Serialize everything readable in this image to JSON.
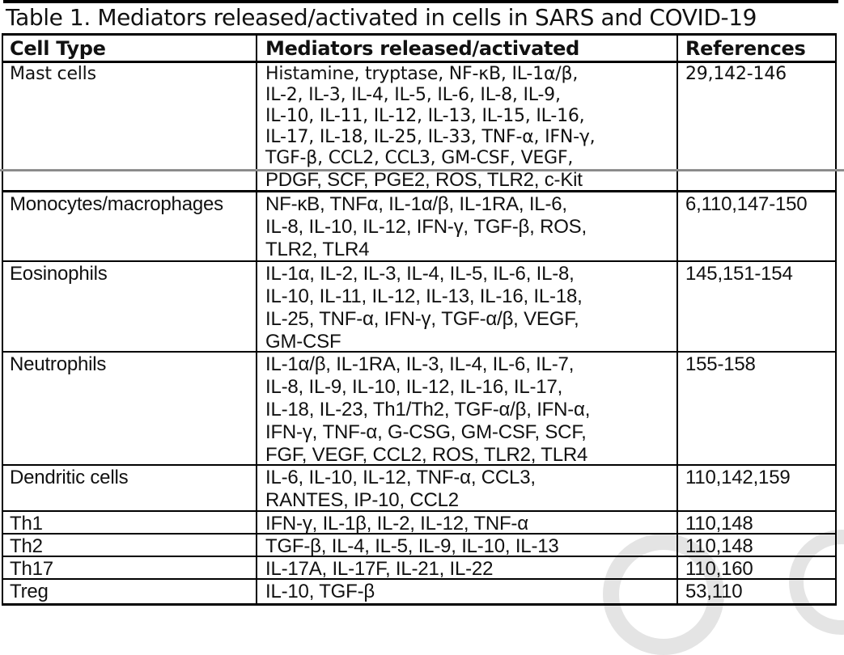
{
  "caption": "Table 1. Mediators released/activated in cells in SARS and COVID-19",
  "colors": {
    "border": "#000000",
    "page_break_line": "#8c8c8c",
    "watermark": "#c9c9c9"
  },
  "table": {
    "headers": {
      "cell_type": "Cell Type",
      "mediators": "Mediators released/activated",
      "references": "References"
    },
    "rows": [
      {
        "cell_type": "Mast cells",
        "mediator_lines": [
          "Histamine, tryptase, NF-κB, IL-1α/β,",
          "IL-2, IL-3, IL-4, IL-5, IL-6, IL-8, IL-9,",
          "IL-10, IL-11, IL-12, IL-13, IL-15, IL-16,",
          "IL-17, IL-18, IL-25, IL-33, TNF-α, IFN-γ,",
          "TGF-β, CCL2, CCL3, GM-CSF, VEGF,"
        ],
        "references": "29,142-146"
      },
      {
        "cell_type": "",
        "mediator_lines": [
          "PDGF, SCF, PGE2, ROS, TLR2, c-Kit"
        ],
        "references": ""
      },
      {
        "cell_type": "Monocytes/macrophages",
        "mediator_lines": [
          "NF-κB, TNFα, IL-1α/β, IL-1RA, IL-6,",
          "IL-8, IL-10, IL-12, IFN-γ, TGF-β, ROS,",
          "TLR2, TLR4"
        ],
        "references": "6,110,147-150"
      },
      {
        "cell_type": "Eosinophils",
        "mediator_lines": [
          "IL-1α, IL-2, IL-3, IL-4, IL-5, IL-6, IL-8,",
          "IL-10, IL-11, IL-12, IL-13, IL-16, IL-18,",
          "IL-25, TNF-α, IFN-γ, TGF-α/β, VEGF,",
          "GM-CSF"
        ],
        "references": "145,151-154"
      },
      {
        "cell_type": "Neutrophils",
        "mediator_lines": [
          "IL-1α/β, IL-1RA, IL-3, IL-4, IL-6, IL-7,",
          "IL-8, IL-9, IL-10, IL-12, IL-16, IL-17,",
          "IL-18, IL-23, Th1/Th2, TGF-α/β, IFN-α,",
          "IFN-γ, TNF-α, G-CSG, GM-CSF, SCF,",
          "FGF, VEGF, CCL2, ROS, TLR2, TLR4"
        ],
        "references": "155-158"
      },
      {
        "cell_type": "Dendritic cells",
        "mediator_lines": [
          "IL-6, IL-10, IL-12, TNF-α, CCL3,",
          "RANTES, IP-10, CCL2"
        ],
        "references": "110,142,159"
      },
      {
        "cell_type": "Th1",
        "mediator_lines": [
          "IFN-γ, IL-1β, IL-2, IL-12, TNF-α"
        ],
        "references": "110,148"
      },
      {
        "cell_type": "Th2",
        "mediator_lines": [
          "TGF-β, IL-4, IL-5, IL-9, IL-10, IL-13"
        ],
        "references": "110,148"
      },
      {
        "cell_type": "Th17",
        "mediator_lines": [
          "IL-17A, IL-17F, IL-21, IL-22"
        ],
        "references": "110,160"
      },
      {
        "cell_type": "Treg",
        "mediator_lines": [
          "IL-10, TGF-β"
        ],
        "references": "53,110"
      }
    ]
  }
}
